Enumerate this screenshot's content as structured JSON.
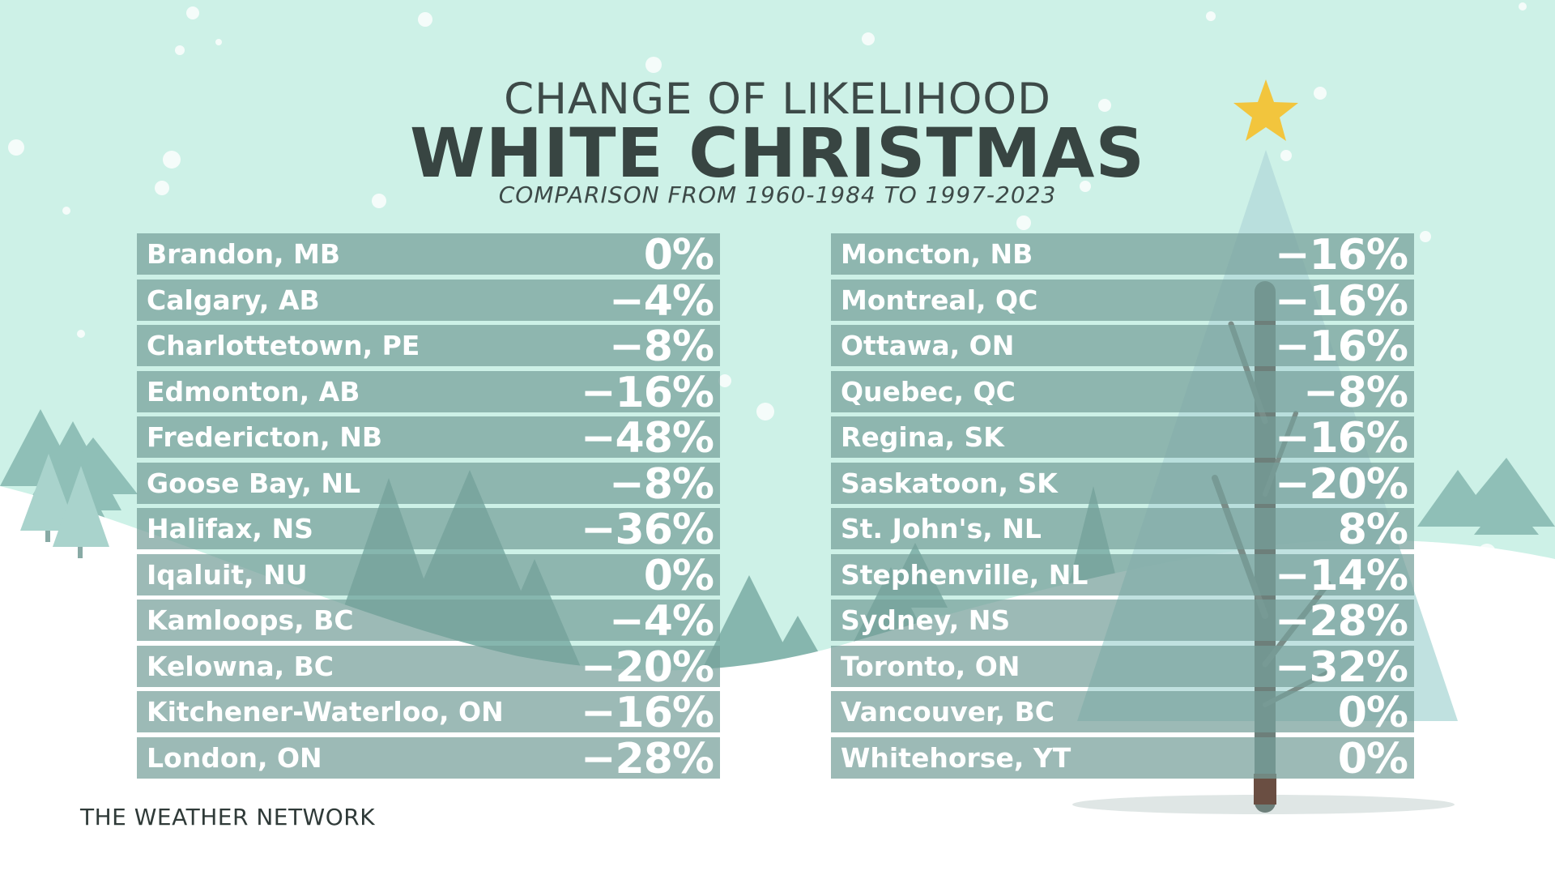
{
  "title_top": "CHANGE OF LIKELIHOOD",
  "title_main": "WHITE CHRISTMAS",
  "subtitle": "COMPARISON FROM 1960-1984 TO 1997-2023",
  "brand": "THE WEATHER NETWORK",
  "colors": {
    "sky": "#cdf1e7",
    "row_fill": "#76a09a",
    "text_light": "#ffffff",
    "text_dark": "#3f4e4b",
    "tree": "#8ab9b2",
    "star": "#f2c53d"
  },
  "chart_data": {
    "type": "table",
    "columns": [
      {
        "rows": [
          {
            "city": "Brandon, MB",
            "change": "0%"
          },
          {
            "city": "Calgary, AB",
            "change": "-4%"
          },
          {
            "city": "Charlottetown, PE",
            "change": "-8%"
          },
          {
            "city": "Edmonton, AB",
            "change": "-16%"
          },
          {
            "city": "Fredericton, NB",
            "change": "-48%"
          },
          {
            "city": "Goose Bay, NL",
            "change": "-8%"
          },
          {
            "city": "Halifax, NS",
            "change": "-36%"
          },
          {
            "city": "Iqaluit, NU",
            "change": "0%"
          },
          {
            "city": "Kamloops, BC",
            "change": "-4%"
          },
          {
            "city": "Kelowna, BC",
            "change": "-20%"
          },
          {
            "city": "Kitchener-Waterloo, ON",
            "change": "-16%"
          },
          {
            "city": "London, ON",
            "change": "-28%"
          }
        ]
      },
      {
        "rows": [
          {
            "city": "Moncton, NB",
            "change": "-16%"
          },
          {
            "city": "Montreal, QC",
            "change": "-16%"
          },
          {
            "city": "Ottawa, ON",
            "change": "-16%"
          },
          {
            "city": "Quebec, QC",
            "change": "-8%"
          },
          {
            "city": "Regina, SK",
            "change": "-16%"
          },
          {
            "city": "Saskatoon, SK",
            "change": "-20%"
          },
          {
            "city": "St. John's, NL",
            "change": "8%"
          },
          {
            "city": "Stephenville, NL",
            "change": "-14%"
          },
          {
            "city": "Sydney, NS",
            "change": "-28%"
          },
          {
            "city": "Toronto, ON",
            "change": "-32%"
          },
          {
            "city": "Vancouver, BC",
            "change": "0%"
          },
          {
            "city": "Whitehorse, YT",
            "change": "0%"
          }
        ]
      }
    ]
  }
}
